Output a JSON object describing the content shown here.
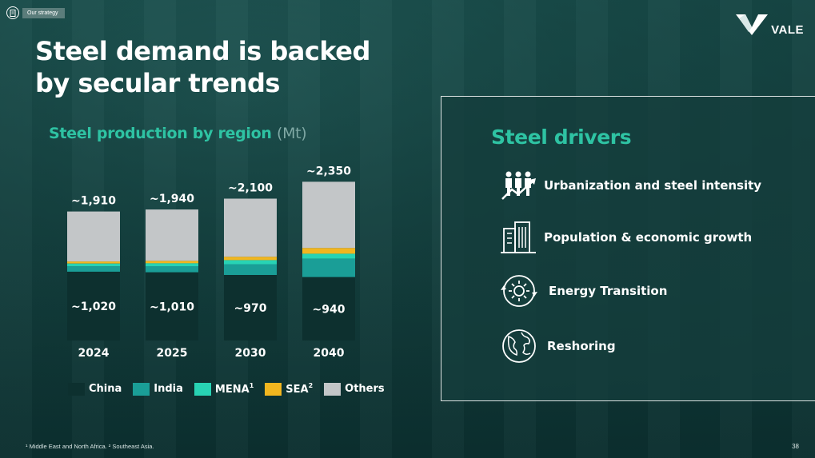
{
  "header": {
    "section_badge": "Our strategy",
    "logo_text": "VALE",
    "title_line1": "Steel demand is backed",
    "title_line2": "by secular trends"
  },
  "chart_section": {
    "title": "Steel production by region",
    "unit": "(Mt)"
  },
  "chart_data": {
    "type": "bar",
    "stacked": true,
    "title": "Steel production by region (Mt)",
    "categories": [
      "2024",
      "2025",
      "2030",
      "2040"
    ],
    "totals_labels": [
      "~1,910",
      "~1,940",
      "~2,100",
      "~2,350"
    ],
    "totals": [
      1910,
      1940,
      2100,
      2350
    ],
    "china_labels": [
      "~1,020",
      "~1,010",
      "~970",
      "~940"
    ],
    "series": [
      {
        "name": "China",
        "color": "#0d302f",
        "values": [
          1020,
          1010,
          970,
          940
        ]
      },
      {
        "name": "India",
        "color": "#1a9e97",
        "values": [
          80,
          90,
          160,
          270
        ]
      },
      {
        "name": "MENA",
        "color": "#28d3b4",
        "values": [
          40,
          45,
          60,
          75
        ]
      },
      {
        "name": "SEA",
        "color": "#f2b61f",
        "values": [
          30,
          35,
          50,
          85
        ]
      },
      {
        "name": "Others",
        "color": "#c3c6c8",
        "values": [
          740,
          760,
          860,
          980
        ]
      }
    ],
    "ylim": [
      0,
      2600
    ]
  },
  "legend": [
    {
      "label": "China",
      "sup": "",
      "color": "#0d302f"
    },
    {
      "label": "India",
      "sup": "",
      "color": "#1a9e97"
    },
    {
      "label": "MENA",
      "sup": "1",
      "color": "#28d3b4"
    },
    {
      "label": "SEA",
      "sup": "2",
      "color": "#f2b61f"
    },
    {
      "label": "Others",
      "sup": "",
      "color": "#c3c6c8"
    }
  ],
  "drivers": {
    "title": "Steel drivers",
    "items": [
      {
        "label": "Urbanization and steel intensity",
        "icon": "urbanization-icon"
      },
      {
        "label": "Population & economic growth",
        "icon": "buildings-icon"
      },
      {
        "label": "Energy Transition",
        "icon": "energy-transition-icon"
      },
      {
        "label": "Reshoring",
        "icon": "globe-icon"
      }
    ]
  },
  "footer": {
    "footnote": "¹ Middle East and North Africa.   ² Southeast Asia.",
    "page_number": "38"
  },
  "colors": {
    "accent": "#2ec3a3",
    "background": "#1d4f4d"
  }
}
